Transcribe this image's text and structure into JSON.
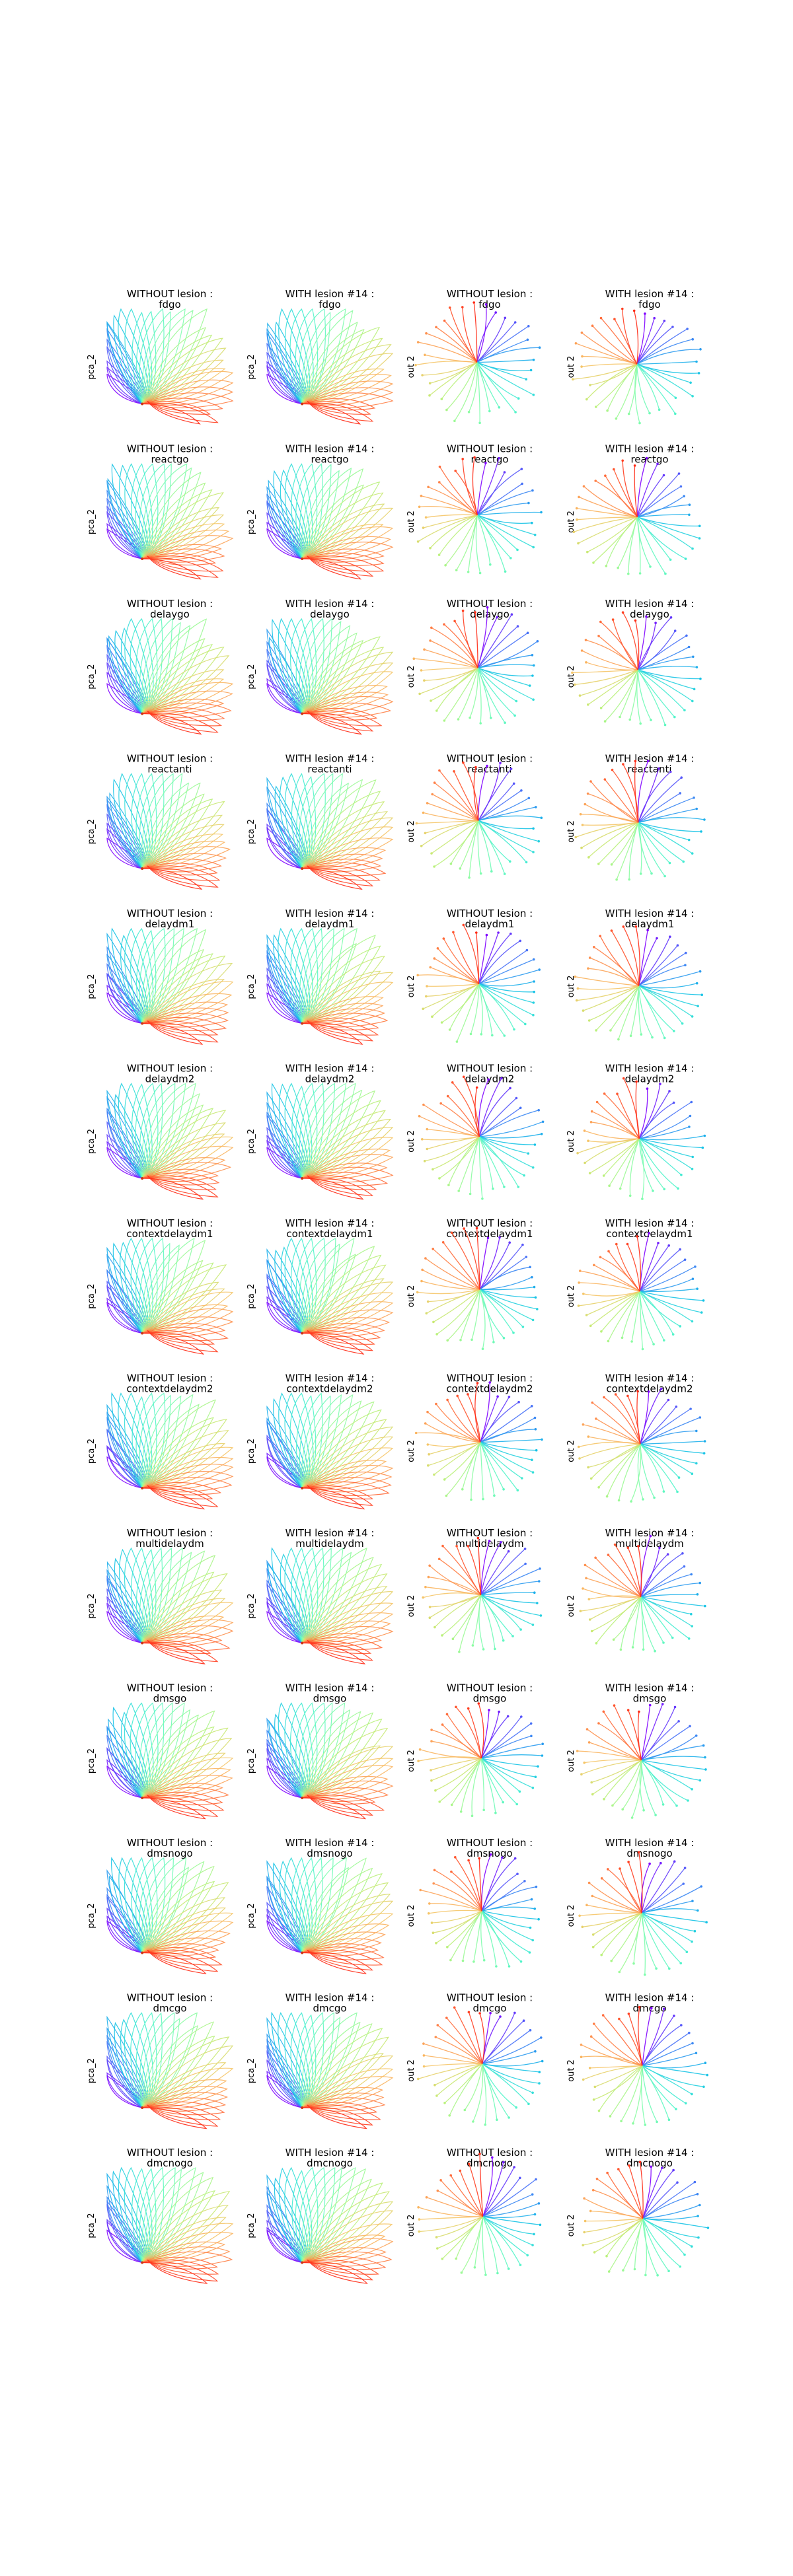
{
  "figure": {
    "rows": [
      {
        "task": "fdgo"
      },
      {
        "task": "reactgo"
      },
      {
        "task": "delaygo"
      },
      {
        "task": "reactanti"
      },
      {
        "task": "delaydm1"
      },
      {
        "task": "delaydm2"
      },
      {
        "task": "contextdelaydm1"
      },
      {
        "task": "contextdelaydm2"
      },
      {
        "task": "multidelaydm"
      },
      {
        "task": "dmsgo"
      },
      {
        "task": "dmsnogo"
      },
      {
        "task": "dmcgo"
      },
      {
        "task": "dmcnogo"
      }
    ],
    "columns": [
      {
        "title_prefix": "WITHOUT lesion :",
        "ylabel": "pca_2",
        "kind": "pca"
      },
      {
        "title_prefix": "WITH lesion #14 :",
        "ylabel": "pca_2",
        "kind": "pca"
      },
      {
        "title_prefix": "WITHOUT lesion :",
        "ylabel": "out 2",
        "kind": "out"
      },
      {
        "title_prefix": "WITH lesion #14 :",
        "ylabel": "out 2",
        "kind": "out"
      }
    ]
  },
  "chart_data": {
    "type": "line",
    "description_source": "grid of trajectory plots, colormap rainbow across 32 trajectories per panel",
    "colormap": [
      "#8000ff",
      "#4a6ff8",
      "#13c0e8",
      "#4df3ce",
      "#86fea9",
      "#c0f077",
      "#f9c267",
      "#ff7d45",
      "#ff2a15"
    ],
    "n_trajectories": 32,
    "axes_visible": false
  }
}
